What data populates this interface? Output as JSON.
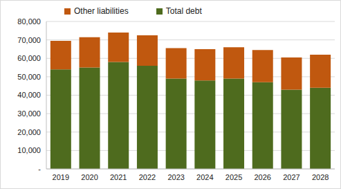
{
  "chart_data": {
    "type": "bar",
    "stacked": true,
    "grid": true,
    "legend": "top",
    "categories": [
      "2019",
      "2020",
      "2021",
      "2022",
      "2023",
      "2024",
      "2025",
      "2026",
      "2027",
      "2028"
    ],
    "series": [
      {
        "name": "Total debt",
        "color": "#4e6b1e",
        "values": [
          54000,
          55000,
          58000,
          56000,
          49000,
          48000,
          49000,
          47000,
          43000,
          44000
        ]
      },
      {
        "name": "Other liabilities",
        "color": "#c0580f",
        "values": [
          15500,
          16500,
          16000,
          16500,
          16500,
          17000,
          17000,
          17500,
          17500,
          18000
        ]
      }
    ],
    "ylim": [
      0,
      80000
    ],
    "yticks": [
      {
        "value": 0,
        "label": "-"
      },
      {
        "value": 10000,
        "label": "10,000"
      },
      {
        "value": 20000,
        "label": "20,000"
      },
      {
        "value": 30000,
        "label": "30,000"
      },
      {
        "value": 40000,
        "label": "40,000"
      },
      {
        "value": 50000,
        "label": "50,000"
      },
      {
        "value": 60000,
        "label": "60,000"
      },
      {
        "value": 70000,
        "label": "70,000"
      },
      {
        "value": 80000,
        "label": "80,000"
      }
    ]
  }
}
